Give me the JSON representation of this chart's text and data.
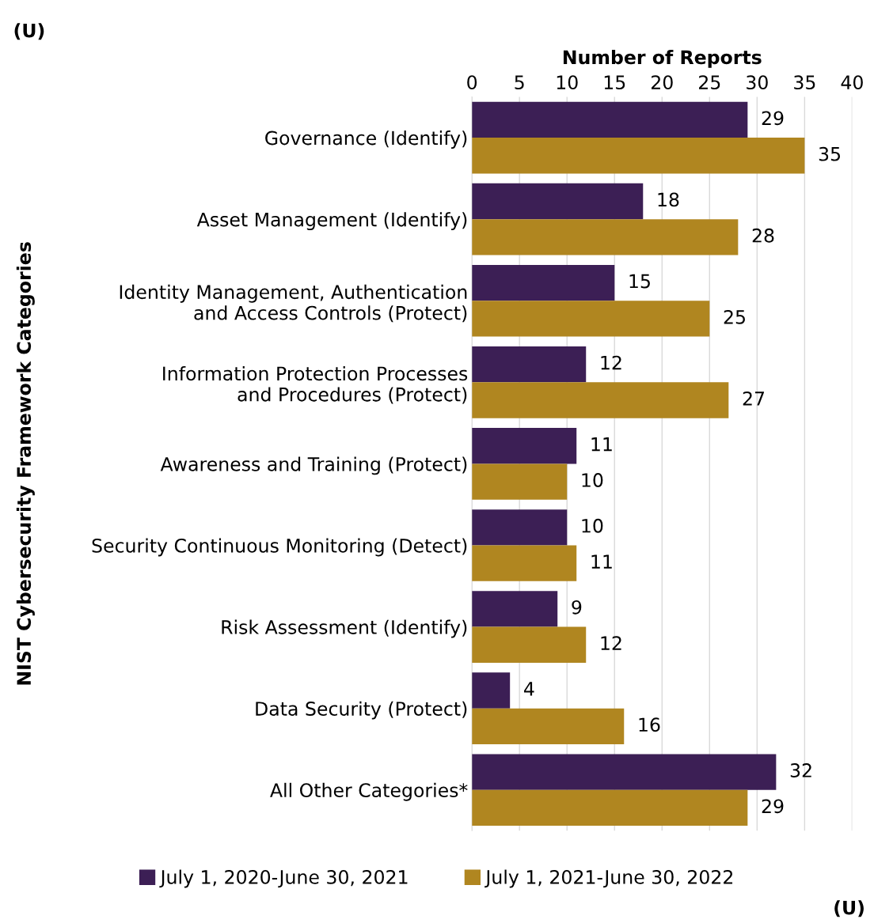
{
  "chart_data": {
    "type": "bar",
    "orientation": "horizontal",
    "xlabel": "Number of Reports",
    "ylabel": "NIST Cybersecurity Framework Categories",
    "categories": [
      "Governance (Identify)",
      "Asset Management (Identify)",
      "Identity Management, Authentication\nand Access Controls (Protect)",
      "Information Protection Processes\nand Procedures (Protect)",
      "Awareness and Training (Protect)",
      "Security Continuous Monitoring (Detect)",
      "Risk Assessment (Identify)",
      "Data Security (Protect)",
      "All Other Categories*"
    ],
    "series": [
      {
        "name": "July 1, 2020-June 30, 2021",
        "color": "#3c1f55",
        "values": [
          29,
          18,
          15,
          12,
          11,
          10,
          9,
          4,
          32
        ]
      },
      {
        "name": "July 1, 2021-June 30, 2022",
        "color": "#b08620",
        "values": [
          35,
          28,
          25,
          27,
          10,
          11,
          12,
          16,
          29
        ]
      }
    ],
    "xlim": [
      0,
      40
    ],
    "xticks": [
      0,
      5,
      10,
      15,
      20,
      25,
      30,
      35,
      40
    ],
    "grid": "x",
    "legend": "bottom",
    "data_labels": true,
    "annotations": [
      "(U)",
      "(U)"
    ]
  }
}
